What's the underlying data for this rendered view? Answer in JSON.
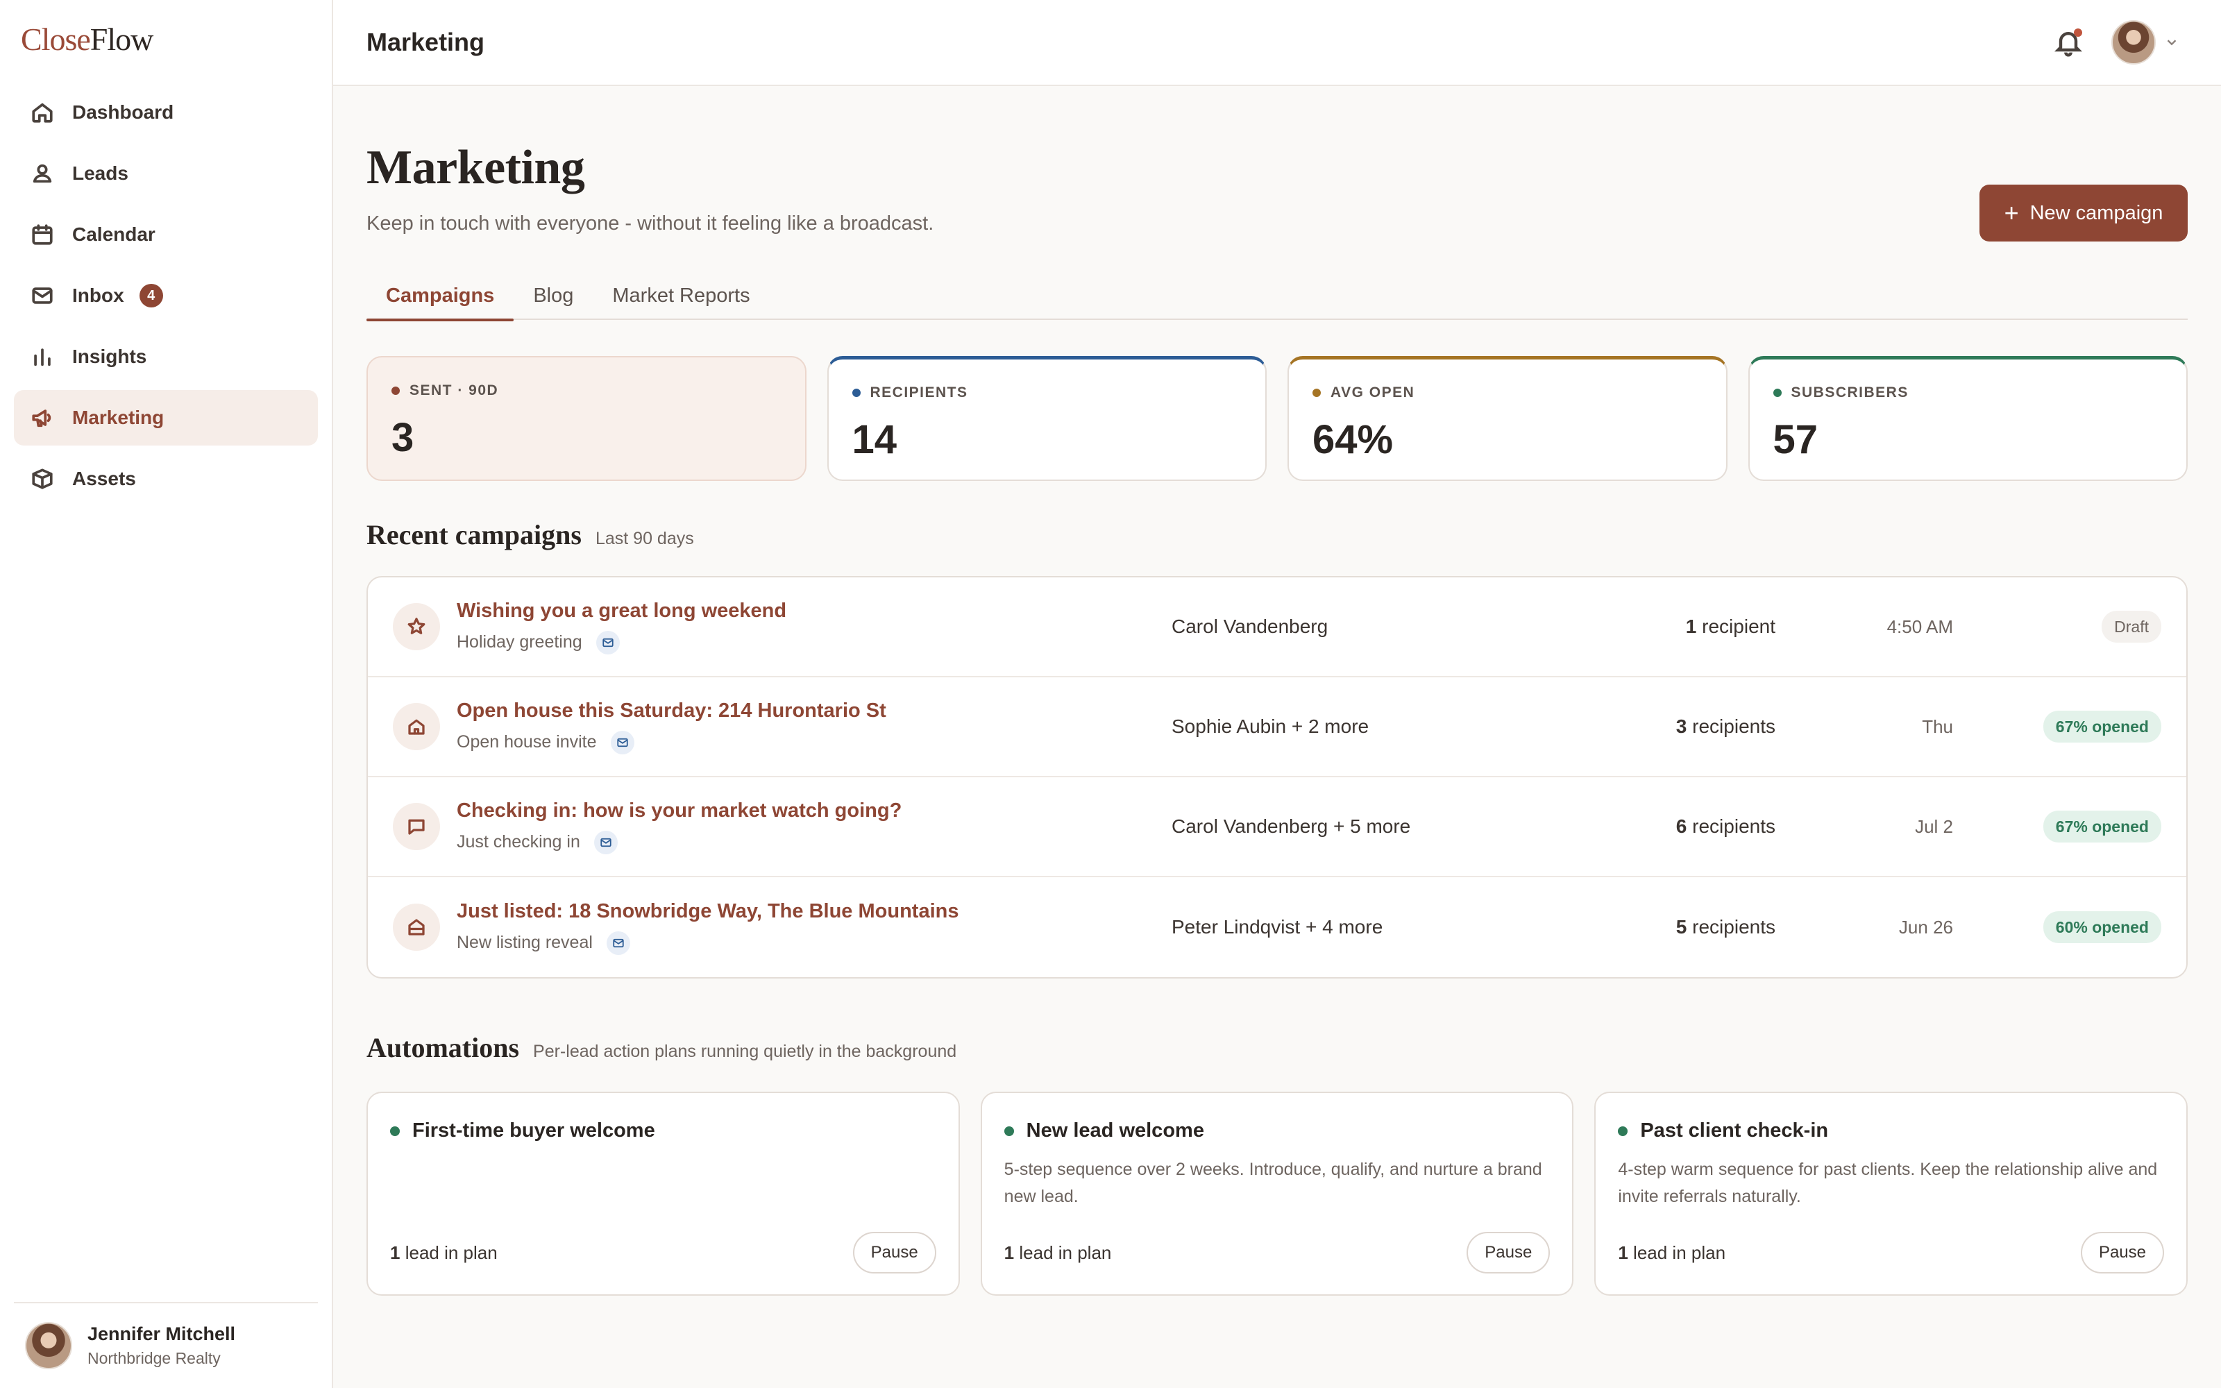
{
  "brand": {
    "logo_part1": "Close",
    "logo_part2": "Flow"
  },
  "sidebar": {
    "items": [
      {
        "label": "Dashboard",
        "icon": "home-icon"
      },
      {
        "label": "Leads",
        "icon": "users-icon"
      },
      {
        "label": "Calendar",
        "icon": "calendar-icon"
      },
      {
        "label": "Inbox",
        "icon": "mail-icon",
        "badge": "4"
      },
      {
        "label": "Insights",
        "icon": "bar-chart-icon"
      },
      {
        "label": "Marketing",
        "icon": "megaphone-icon",
        "active": true
      },
      {
        "label": "Assets",
        "icon": "box-icon"
      }
    ],
    "profile": {
      "name": "Jennifer Mitchell",
      "org": "Northbridge Realty"
    }
  },
  "topbar": {
    "title": "Marketing"
  },
  "page": {
    "title": "Marketing",
    "subtitle": "Keep in touch with everyone - without it feeling like a broadcast.",
    "new_campaign_label": "New campaign"
  },
  "tabs": [
    {
      "label": "Campaigns",
      "active": true
    },
    {
      "label": "Blog"
    },
    {
      "label": "Market Reports"
    }
  ],
  "stats": [
    {
      "label": "SENT · 90D",
      "value": "3",
      "color": "#8e4634"
    },
    {
      "label": "RECIPIENTS",
      "value": "14",
      "color": "#2c5c95"
    },
    {
      "label": "AVG OPEN",
      "value": "64%",
      "color": "#a57424"
    },
    {
      "label": "SUBSCRIBERS",
      "value": "57",
      "color": "#2e7a58"
    }
  ],
  "recent": {
    "title": "Recent campaigns",
    "note": "Last 90 days",
    "rows": [
      {
        "icon": "star-icon",
        "title": "Wishing you a great long weekend",
        "type": "Holiday greeting",
        "people": "Carol Vandenberg",
        "recip_count": "1",
        "recip_label": "recipient",
        "time": "4:50 AM",
        "status": "Draft"
      },
      {
        "icon": "house-icon",
        "title": "Open house this Saturday: 214 Hurontario St",
        "type": "Open house invite",
        "people": "Sophie Aubin + 2 more",
        "recip_count": "3",
        "recip_label": "recipients",
        "time": "Thu",
        "status": "67% opened"
      },
      {
        "icon": "chat-icon",
        "title": "Checking in: how is your market watch going?",
        "type": "Just checking in",
        "people": "Carol Vandenberg + 5 more",
        "recip_count": "6",
        "recip_label": "recipients",
        "time": "Jul 2",
        "status": "67% opened"
      },
      {
        "icon": "home-icon",
        "title": "Just listed: 18 Snowbridge Way, The Blue Mountains",
        "type": "New listing reveal",
        "people": "Peter Lindqvist + 4 more",
        "recip_count": "5",
        "recip_label": "recipients",
        "time": "Jun 26",
        "status": "60% opened"
      }
    ]
  },
  "automations": {
    "title": "Automations",
    "note": "Per-lead action plans running quietly in the background",
    "items": [
      {
        "name": "First-time buyer welcome",
        "desc": "",
        "count": "1",
        "count_label": "lead in plan",
        "action": "Pause"
      },
      {
        "name": "New lead welcome",
        "desc": "5-step sequence over 2 weeks. Introduce, qualify, and nurture a brand new lead.",
        "count": "1",
        "count_label": "lead in plan",
        "action": "Pause"
      },
      {
        "name": "Past client check-in",
        "desc": "4-step warm sequence for past clients. Keep the relationship alive and invite referrals naturally.",
        "count": "1",
        "count_label": "lead in plan",
        "action": "Pause"
      }
    ]
  }
}
